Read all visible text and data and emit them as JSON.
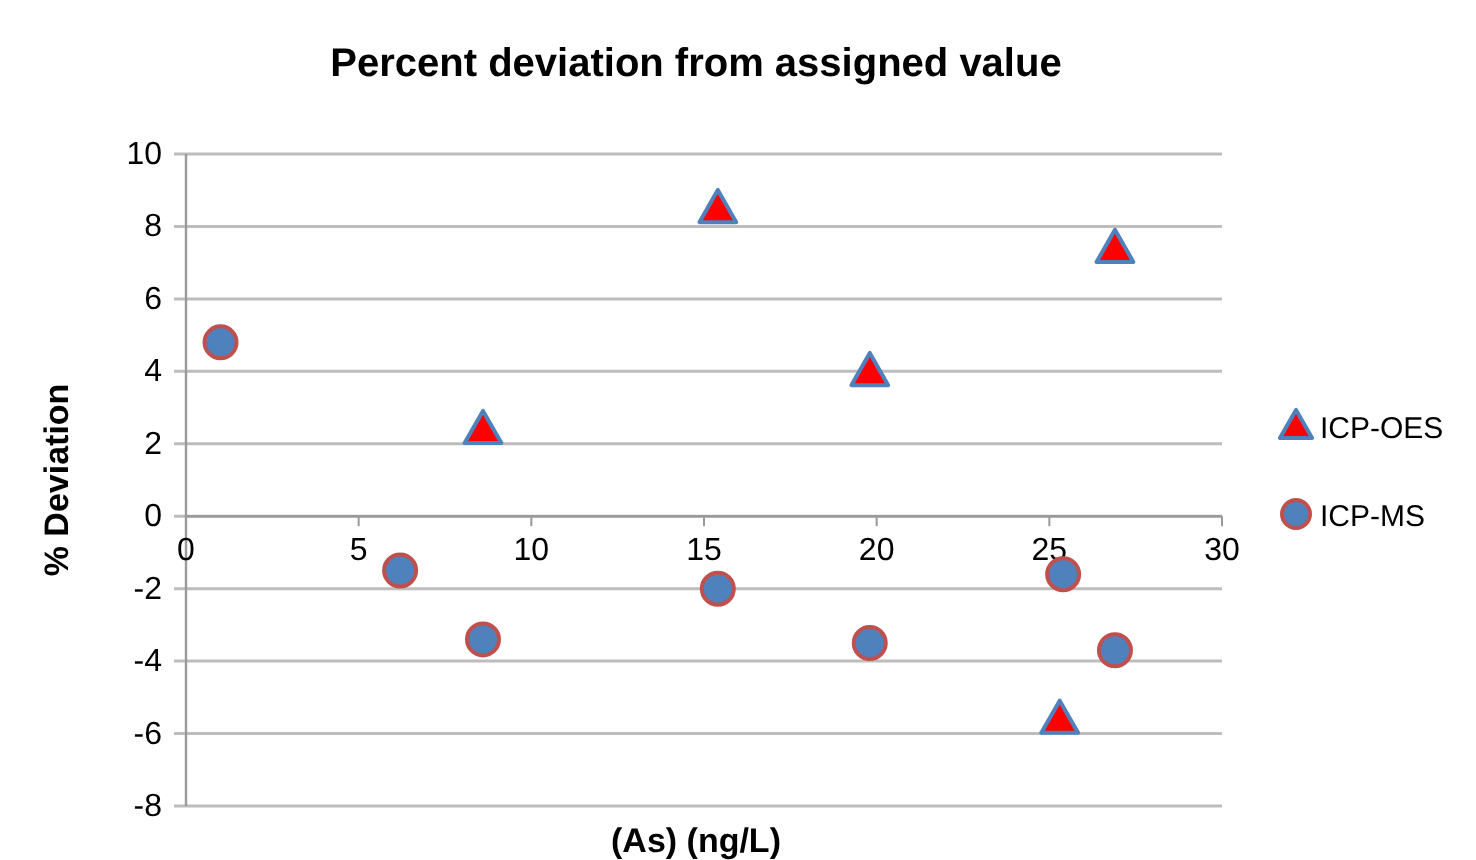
{
  "chart_data": {
    "type": "scatter",
    "title": "Percent deviation from assigned value",
    "xlabel": "(As) (ng/L)",
    "ylabel": "% Deviation",
    "xlim": [
      0,
      30
    ],
    "xticks": [
      0,
      5,
      10,
      15,
      20,
      25,
      30
    ],
    "ylim": [
      -8,
      10
    ],
    "yticks": [
      -8,
      -6,
      -4,
      -2,
      0,
      2,
      4,
      6,
      8,
      10
    ],
    "grid": "y",
    "legend": "right",
    "series": [
      {
        "name": "ICP-OES",
        "marker": "triangle",
        "color": "#ff0000",
        "x": [
          8.6,
          15.4,
          19.8,
          26.9,
          25.3
        ],
        "values": [
          2.4,
          8.5,
          4.0,
          7.4,
          -5.6
        ]
      },
      {
        "name": "ICP-MS",
        "marker": "circle",
        "color": "#4f81bd",
        "x": [
          1.0,
          6.2,
          8.6,
          15.4,
          19.8,
          25.4,
          26.9
        ],
        "values": [
          4.8,
          -1.5,
          -3.4,
          -2.0,
          -3.5,
          -1.6,
          -3.7
        ]
      }
    ]
  }
}
